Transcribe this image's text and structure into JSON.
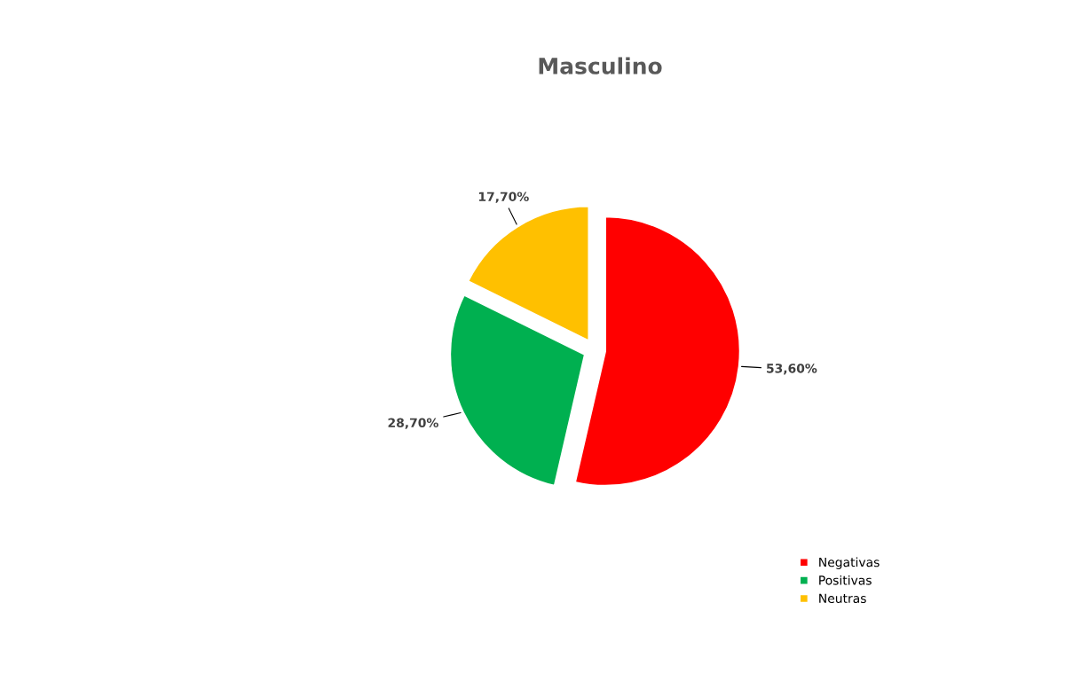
{
  "chart_data": {
    "type": "pie",
    "title": "Masculino",
    "categories": [
      "Negativas",
      "Positivas",
      "Neutras"
    ],
    "values": [
      53.6,
      28.7,
      17.7
    ],
    "colors": [
      "#ff0000",
      "#00b050",
      "#ffc000"
    ],
    "value_labels": [
      "53,60%",
      "28,70%",
      "17,70%"
    ],
    "legend": "bottom right"
  }
}
